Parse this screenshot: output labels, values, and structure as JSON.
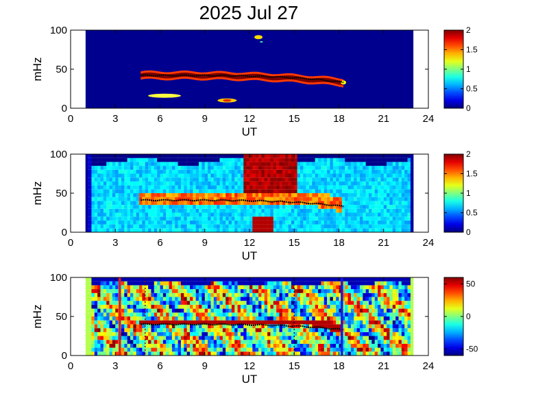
{
  "chart_data": {
    "type": "heatmap",
    "title": "2025 Jul 27",
    "panels": [
      {
        "ylabel": "mHz",
        "xlabel": "UT",
        "xlim": [
          0,
          24
        ],
        "ylim": [
          0,
          100
        ],
        "xticks": [
          0,
          3,
          6,
          9,
          12,
          15,
          18,
          21,
          24
        ],
        "yticks": [
          0,
          50,
          100
        ],
        "colorbar": {
          "range": [
            0,
            2
          ],
          "ticks": [
            "0",
            "0.5",
            "1",
            "1.5",
            "2"
          ]
        },
        "data_extent_ut": [
          1.0,
          23.0
        ],
        "trace": {
          "ut_start": 4.7,
          "ut_end": 18.3,
          "mhz_start": 42,
          "mhz_end": 33
        }
      },
      {
        "ylabel": "mHz",
        "xlabel": "UT",
        "xlim": [
          0,
          24
        ],
        "ylim": [
          0,
          100
        ],
        "xticks": [
          0,
          3,
          6,
          9,
          12,
          15,
          18,
          21,
          24
        ],
        "yticks": [
          0,
          50,
          100
        ],
        "colorbar": {
          "range": [
            0,
            2
          ],
          "ticks": [
            "0",
            "0.5",
            "1",
            "1.5",
            "2"
          ]
        },
        "data_extent_ut": [
          1.0,
          23.0
        ],
        "trace": {
          "ut_start": 4.7,
          "ut_end": 18.3,
          "mhz_start": 41,
          "mhz_end": 33
        }
      },
      {
        "ylabel": "mHz",
        "xlabel": "UT",
        "xlim": [
          0,
          24
        ],
        "ylim": [
          0,
          100
        ],
        "xticks": [
          0,
          3,
          6,
          9,
          12,
          15,
          18,
          21,
          24
        ],
        "yticks": [
          0,
          50,
          100
        ],
        "colorbar": {
          "range": [
            -60,
            60
          ],
          "ticks": [
            "-50",
            "0",
            "50"
          ]
        },
        "data_extent_ut": [
          1.0,
          23.0
        ],
        "trace": {
          "ut_start": 4.7,
          "ut_end": 18.3,
          "mhz_start": 40,
          "mhz_end": 33
        },
        "markers": [
          {
            "ut": 3.3,
            "color": "#e51a1a",
            "style": "solid"
          },
          {
            "ut": 5.0,
            "color": "#7a1010",
            "style": "dotted"
          },
          {
            "ut": 15.0,
            "color": "#10104a",
            "style": "dotted"
          },
          {
            "ut": 18.2,
            "color": "#1a1ae5",
            "style": "solid"
          }
        ]
      }
    ]
  }
}
